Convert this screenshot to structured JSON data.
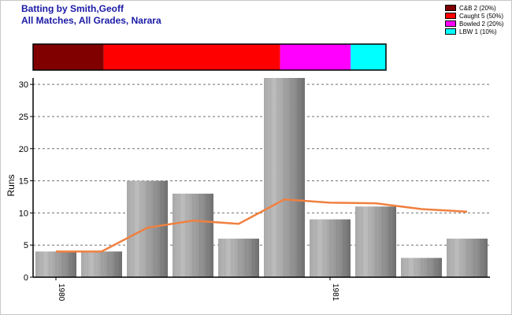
{
  "header": {
    "title_line1": "Batting by Smith,Geoff",
    "title_line2": "All Matches, All Grades, Narara"
  },
  "legend": [
    {
      "label": "C&B 2 (20%)",
      "color": "#800000"
    },
    {
      "label": "Caught 5 (50%)",
      "color": "#ff0000"
    },
    {
      "label": "Bowled 2 (20%)",
      "color": "#ff00ff"
    },
    {
      "label": "LBW 1 (10%)",
      "color": "#00ffff"
    }
  ],
  "chart_data": [
    {
      "type": "bar",
      "stacked_horizontal": true,
      "segments": [
        {
          "name": "C&B",
          "value": 2,
          "color": "#800000"
        },
        {
          "name": "Caught",
          "value": 5,
          "color": "#ff0000"
        },
        {
          "name": "Bowled",
          "value": 2,
          "color": "#ff00ff"
        },
        {
          "name": "LBW",
          "value": 1,
          "color": "#00ffff"
        }
      ]
    },
    {
      "type": "bar",
      "ylabel": "Runs",
      "ylim": [
        0,
        31
      ],
      "yticks": [
        0,
        5,
        10,
        15,
        20,
        25,
        30
      ],
      "grid": true,
      "x_tick_labels": [
        {
          "index": 0,
          "label": "1980"
        },
        {
          "index": 6,
          "label": "1981"
        }
      ],
      "series": [
        {
          "type": "bar",
          "values": [
            4,
            4,
            15,
            13,
            6,
            31,
            9,
            11,
            3,
            6
          ]
        },
        {
          "type": "line",
          "color": "#f08040",
          "values": [
            4,
            4,
            7.7,
            8.8,
            8.3,
            12.1,
            11.6,
            11.5,
            10.6,
            10.2
          ]
        }
      ]
    }
  ]
}
